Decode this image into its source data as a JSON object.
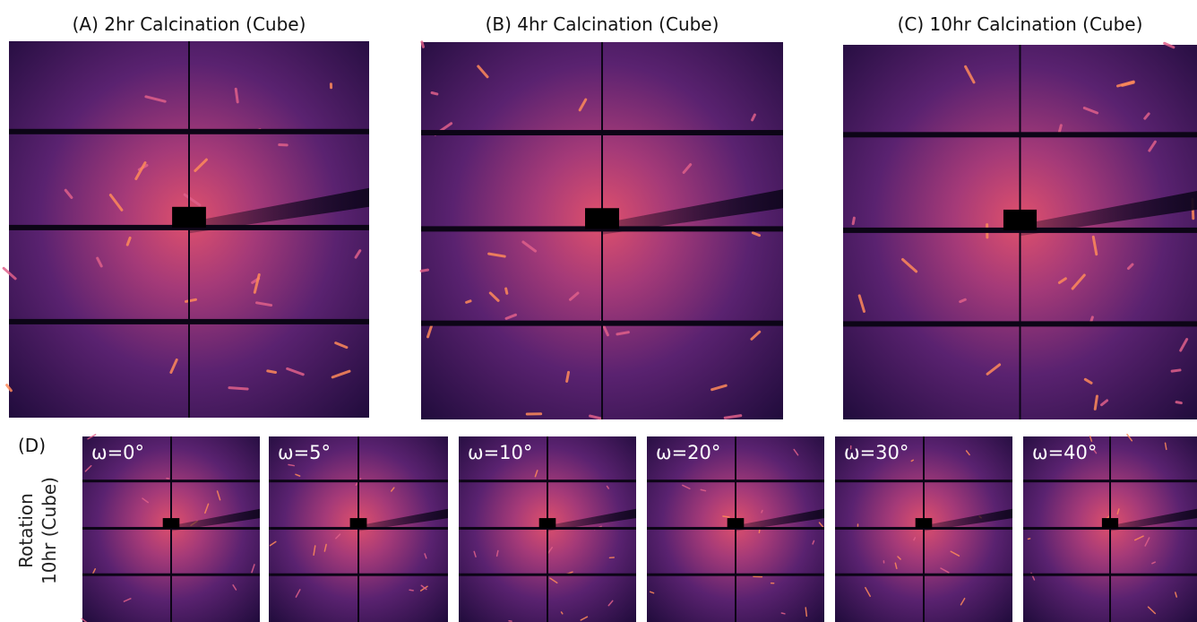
{
  "panels": [
    {
      "title": "(A) 2hr Calcination (Cube)"
    },
    {
      "title": "(B) 4hr Calcination (Cube)"
    },
    {
      "title": "(C) 10hr Calcination (Cube)"
    }
  ],
  "rotation": {
    "label": "(D)",
    "ylabel": [
      "Rotation",
      "10hr (Cube)"
    ],
    "frames": [
      "ω=0°",
      "ω=5°",
      "ω=10°",
      "ω=20°",
      "ω=30°",
      "ω=40°"
    ]
  }
}
